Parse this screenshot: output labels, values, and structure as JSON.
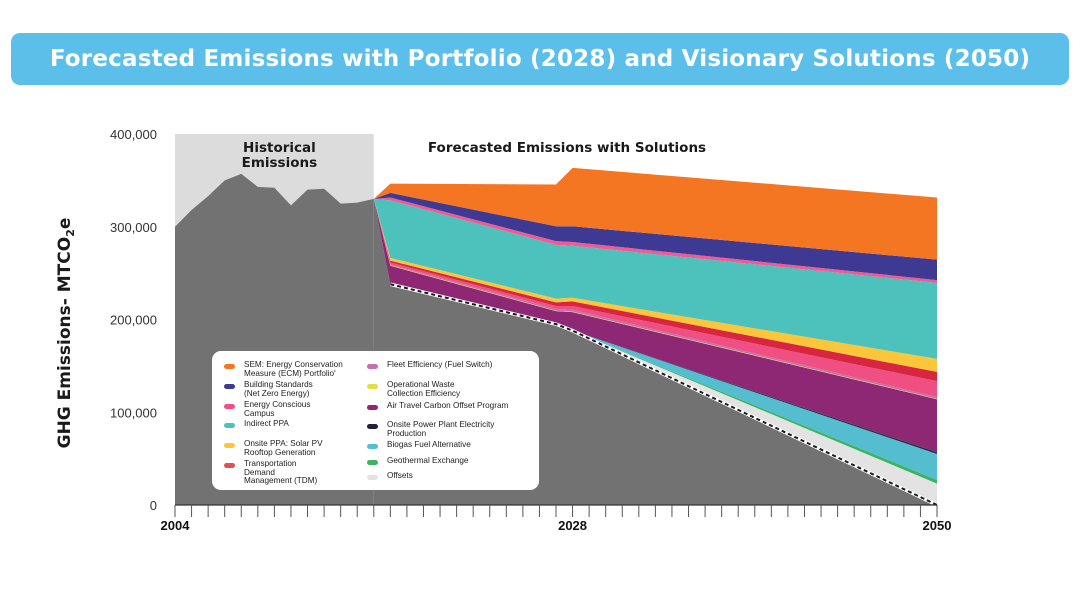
{
  "title": "Forecasted Emissions with Portfolio (2028) and Visionary Solutions (2050)",
  "chart_data": {
    "type": "area",
    "ylabel_main": "GHG Emissions- MTCO",
    "ylabel_sub": "2",
    "ylabel_tail": "e",
    "ylim": [
      0,
      400000
    ],
    "y_ticks": [
      "0",
      "100,000",
      "200,000",
      "300,000",
      "400,000"
    ],
    "y_tick_values": [
      0,
      100000,
      200000,
      300000,
      400000
    ],
    "x_ticks": [
      "2004",
      "2028",
      "2050"
    ],
    "x_tick_values": [
      2004,
      2028,
      2050
    ],
    "xlim": [
      2004,
      2050
    ],
    "regions": [
      {
        "label": "Historical\nEmissions",
        "x_start": 2004,
        "x_end": 2016
      },
      {
        "label": "Forecasted Emissions with Solutions",
        "x_start": 2016,
        "x_end": 2050
      }
    ],
    "historical": {
      "x": [
        2004,
        2005,
        2006,
        2007,
        2008,
        2009,
        2010,
        2011,
        2012,
        2013,
        2014,
        2015,
        2016
      ],
      "values": [
        300000,
        318000,
        333000,
        350000,
        357000,
        343000,
        342000,
        323000,
        340000,
        341000,
        325000,
        326000,
        330000
      ]
    },
    "x": [
      2016,
      2017,
      2027,
      2028,
      2050
    ],
    "baseline_remaining": [
      330000,
      238000,
      195000,
      188000,
      0
    ],
    "series": [
      {
        "name": "Offsets",
        "color": "#e3e3e3",
        "values": [
          0,
          0,
          0,
          0,
          23000
        ]
      },
      {
        "name": "Geothermal Exchange",
        "color": "#3cb35f",
        "values": [
          0,
          0,
          0,
          0,
          4000
        ]
      },
      {
        "name": "Biogas Fuel Alternative",
        "color": "#55bdd0",
        "values": [
          0,
          0,
          0,
          0,
          28000
        ]
      },
      {
        "name": "Onsite Power Plant Electricity Production",
        "color": "#2b2d4c",
        "values": [
          0,
          0,
          0,
          0,
          2000
        ]
      },
      {
        "name": "Air Travel Carbon Offset Program",
        "color": "#8e2874",
        "values": [
          0,
          20000,
          14000,
          20000,
          57000
        ]
      },
      {
        "name": "Operational Waste Collection Efficiency",
        "color": "#e0df44",
        "values": [
          0,
          500,
          500,
          500,
          500
        ]
      },
      {
        "name": "Fleet Efficiency (Fuel Switch)",
        "color": "#c56fad",
        "values": [
          0,
          1000,
          2000,
          2000,
          2000
        ]
      },
      {
        "name": "Energy Conscious Campus",
        "color": "#ef4f83",
        "values": [
          0,
          2000,
          3000,
          4000,
          17000
        ]
      },
      {
        "name": "Transportation Demand Management (TDM)",
        "color": "#d82540",
        "values": [
          0,
          2000,
          4000,
          5000,
          10000
        ]
      },
      {
        "name": "Onsite PPA: Solar PV Rooftop Generation",
        "color": "#fcc63a",
        "values": [
          0,
          3000,
          4000,
          4000,
          14000
        ]
      },
      {
        "name": "Indirect PPA",
        "color": "#4dc1bb",
        "values": [
          0,
          62000,
          58000,
          56000,
          82000
        ]
      },
      {
        "name": "Energy Conscious Campus",
        "color": "#ef5b94",
        "values": [
          0,
          3000,
          4000,
          4000,
          3000
        ]
      },
      {
        "name": "Building Standards (Net Zero Energy)",
        "color": "#3e3a94",
        "values": [
          0,
          5000,
          16000,
          17000,
          22000
        ]
      },
      {
        "name": "SEM: Energy Conservation Measure (ECM) Portfolio",
        "color": "#f47623",
        "values": [
          0,
          10000,
          45000,
          63000,
          67000
        ]
      }
    ],
    "legend": {
      "placement": "bottom-left",
      "left_column": [
        {
          "label": "SEM: Energy Conservation\nMeasure (ECM) Portfolio'",
          "color": "#f47623"
        },
        {
          "label": "Building Standards\n(Net Zero Energy)",
          "color": "#3e3a94"
        },
        {
          "label": "Energy Conscious\nCampus",
          "color": "#ef4f83"
        },
        {
          "label": "Indirect PPA",
          "color": "#4dc1bb"
        },
        {
          "label": "Onsite PPA: Solar PV\nRooftop Generation",
          "color": "#fcc63a"
        },
        {
          "label": "Transportation\nDemand\nManagement (TDM)",
          "color": "#e0524d"
        }
      ],
      "right_column": [
        {
          "label": "Fleet Efficiency (Fuel Switch)",
          "color": "#c56fad"
        },
        {
          "label": "Operational Waste\nCollection Efficiency",
          "color": "#e0df44"
        },
        {
          "label": "Air Travel Carbon Offset Program",
          "color": "#8e2874"
        },
        {
          "label": "Onsite Power Plant Electricity\nProduction",
          "color": "#1f2340"
        },
        {
          "label": "Biogas Fuel Alternative",
          "color": "#55bdd0"
        },
        {
          "label": "Geothermal Exchange",
          "color": "#3cb35f"
        },
        {
          "label": "Offsets",
          "color": "#e3e3e3"
        }
      ]
    }
  }
}
